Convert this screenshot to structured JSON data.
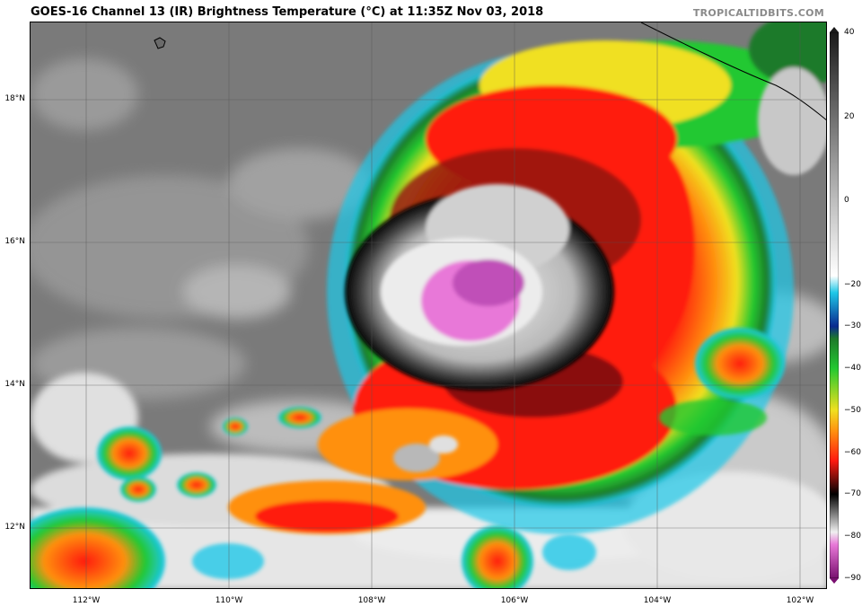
{
  "title": "GOES-16 Channel 13 (IR) Brightness Temperature (°C) at 11:35Z Nov 03, 2018",
  "credit": "TROPICALTIDBITS.COM",
  "map": {
    "lat_labels": [
      "18°N",
      "16°N",
      "14°N",
      "12°N"
    ],
    "lon_labels": [
      "112°W",
      "110°W",
      "108°W",
      "106°W",
      "104°W",
      "102°W"
    ],
    "gridlines": true
  },
  "colorbar": {
    "min": -90,
    "max": 40,
    "ticks": [
      "40",
      "20",
      "0",
      "−20",
      "−30",
      "−40",
      "−50",
      "−60",
      "−70",
      "−80",
      "−90"
    ],
    "stops": [
      {
        "t": 40,
        "color": "#1a1a1a"
      },
      {
        "t": 20,
        "color": "#6e6e6e"
      },
      {
        "t": 0,
        "color": "#bdbdbd"
      },
      {
        "t": -18,
        "color": "#ffffff"
      },
      {
        "t": -22,
        "color": "#1ec8e8"
      },
      {
        "t": -30,
        "color": "#0a2a90"
      },
      {
        "t": -33,
        "color": "#1e7a2a"
      },
      {
        "t": -40,
        "color": "#22c830"
      },
      {
        "t": -50,
        "color": "#f0e020"
      },
      {
        "t": -55,
        "color": "#ff9010"
      },
      {
        "t": -62,
        "color": "#ff1a10"
      },
      {
        "t": -68,
        "color": "#400808"
      },
      {
        "t": -70,
        "color": "#000000"
      },
      {
        "t": -79,
        "color": "#f0f0f0"
      },
      {
        "t": -82,
        "color": "#e878d8"
      },
      {
        "t": -90,
        "color": "#7a1070"
      }
    ]
  },
  "colors": {
    "cloud_free": "#7a7a7a",
    "low_cloud": "#b8b8b8",
    "cold_top": "#ff1a10"
  }
}
